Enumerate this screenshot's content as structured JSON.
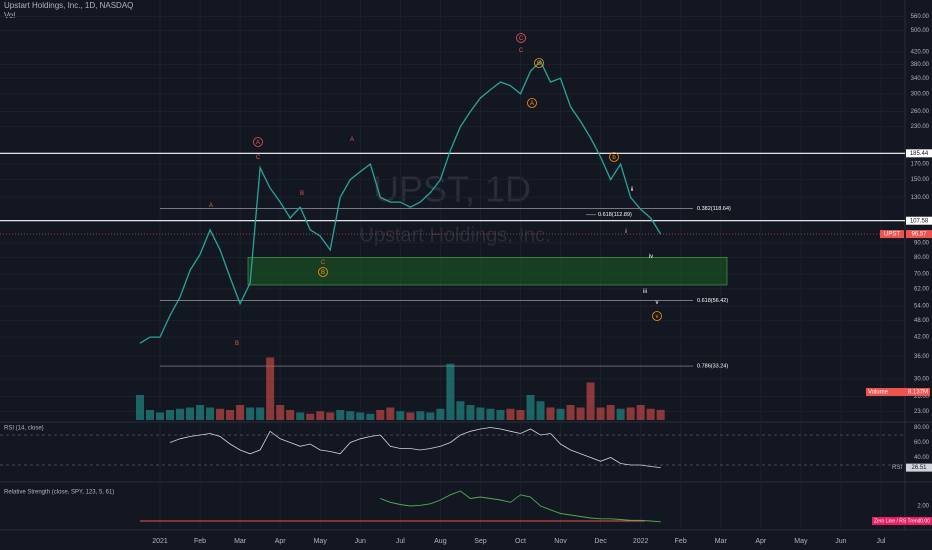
{
  "header": {
    "title": "Upstart Holdings, Inc., 1D, NASDAQ",
    "volume_label": "Vol",
    "watermark_symbol": "UPST, 1D",
    "watermark_name": "Upstart Holdings, Inc."
  },
  "chart_data": {
    "type": "line",
    "log_scale": true,
    "grid": true,
    "x": [
      -0.5,
      -0.25,
      0,
      0.25,
      0.5,
      0.75,
      1,
      1.25,
      1.5,
      1.75,
      2,
      2.25,
      2.5,
      2.75,
      3,
      3.25,
      3.5,
      3.75,
      4,
      4.25,
      4.5,
      4.75,
      5,
      5.25,
      5.5,
      5.75,
      6,
      6.25,
      6.5,
      6.75,
      7,
      7.25,
      7.5,
      7.75,
      8,
      8.25,
      8.5,
      8.75,
      9,
      9.25,
      9.5,
      9.75,
      10,
      10.25,
      10.5,
      10.75,
      11,
      11.25,
      11.5,
      11.75,
      12,
      12.25,
      12.5
    ],
    "series": [
      {
        "name": "UPST",
        "color": "#26a69a",
        "values": [
          40,
          42,
          42,
          50,
          58,
          72,
          82,
          100,
          85,
          68,
          55,
          65,
          165,
          140,
          125,
          110,
          120,
          100,
          95,
          85,
          130,
          150,
          160,
          170,
          130,
          125,
          125,
          120,
          125,
          135,
          150,
          190,
          230,
          260,
          290,
          310,
          330,
          320,
          300,
          360,
          390,
          330,
          340,
          270,
          240,
          210,
          180,
          150,
          170,
          130,
          118,
          110,
          96.57
        ]
      }
    ],
    "last_label": "96.57",
    "xlim": [
      -0.6,
      18.6
    ],
    "xticks": [
      {
        "value": 0,
        "label": "2021"
      },
      {
        "value": 1,
        "label": "Feb"
      },
      {
        "value": 2,
        "label": "Mar"
      },
      {
        "value": 3,
        "label": "Apr"
      },
      {
        "value": 4,
        "label": "May"
      },
      {
        "value": 5,
        "label": "Jun"
      },
      {
        "value": 6,
        "label": "Jul"
      },
      {
        "value": 7,
        "label": "Aug"
      },
      {
        "value": 8,
        "label": "Sep"
      },
      {
        "value": 9,
        "label": "Oct"
      },
      {
        "value": 10,
        "label": "Nov"
      },
      {
        "value": 11,
        "label": "Dec"
      },
      {
        "value": 12,
        "label": "2022"
      },
      {
        "value": 13,
        "label": "Feb"
      },
      {
        "value": 14,
        "label": "Mar"
      },
      {
        "value": 15,
        "label": "Apr"
      },
      {
        "value": 16,
        "label": "May"
      },
      {
        "value": 17,
        "label": "Jun"
      },
      {
        "value": 18,
        "label": "Jul"
      }
    ],
    "ylim": [
      21.5,
      640
    ],
    "yticks": [
      {
        "value": 560,
        "label": "560.00"
      },
      {
        "value": 500,
        "label": "500.00"
      },
      {
        "value": 420,
        "label": "420.00"
      },
      {
        "value": 380,
        "label": "380.00"
      },
      {
        "value": 340,
        "label": "340.00"
      },
      {
        "value": 300,
        "label": "300.00"
      },
      {
        "value": 260,
        "label": "260.00"
      },
      {
        "value": 230,
        "label": "230.00"
      },
      {
        "value": 170,
        "label": "170.00"
      },
      {
        "value": 150,
        "label": "150.00"
      },
      {
        "value": 130,
        "label": "130.00"
      },
      {
        "value": 90,
        "label": "90.00"
      },
      {
        "value": 80,
        "label": "80.00"
      },
      {
        "value": 70,
        "label": "70.00"
      },
      {
        "value": 62,
        "label": "62.00"
      },
      {
        "value": 54,
        "label": "54.00"
      },
      {
        "value": 48,
        "label": "48.00"
      },
      {
        "value": 42,
        "label": "42.00"
      },
      {
        "value": 36,
        "label": "36.00"
      },
      {
        "value": 30,
        "label": "30.00"
      },
      {
        "value": 26,
        "label": "26.00"
      },
      {
        "value": 23,
        "label": "23.00"
      }
    ],
    "levels": [
      {
        "value": 185.44,
        "label": "185.44",
        "color": "#ffffff"
      },
      {
        "value": 107.58,
        "label": "107.58",
        "color": "#ffffff"
      }
    ],
    "fib_levels": [
      {
        "value": 118.64,
        "label": "0.382(118.64)"
      },
      {
        "value": 112.89,
        "label": "0.618(112.89)"
      },
      {
        "value": 56.42,
        "label": "0.618(56.42)"
      },
      {
        "value": 33.24,
        "label": "0.786(33.24)"
      }
    ],
    "zone": {
      "values": [
        80,
        64
      ],
      "color": "#1b5e20"
    },
    "annotations": [
      "C",
      "C",
      "B",
      "A",
      "A",
      "C",
      "A",
      "B",
      "A",
      "B",
      "C",
      "B",
      "b",
      "ii",
      "i",
      "iv",
      "iii",
      "v",
      "v"
    ],
    "volume": {
      "name": "Volume",
      "value_label": "8.137M",
      "ylim": [
        0,
        60
      ],
      "values": [
        20,
        8,
        6,
        8,
        9,
        10,
        12,
        10,
        9,
        8,
        12,
        10,
        10,
        50,
        12,
        8,
        6,
        5,
        7,
        6,
        8,
        7,
        6,
        5,
        8,
        10,
        7,
        6,
        7,
        6,
        9,
        45,
        15,
        12,
        10,
        9,
        8,
        9,
        8,
        20,
        15,
        10,
        9,
        12,
        10,
        30,
        10,
        12,
        9,
        10,
        12,
        9,
        8.137
      ]
    },
    "rsi": {
      "title": "RSI (14, close)",
      "name": "RSI",
      "value_label": "26.51",
      "ylim": [
        10,
        86
      ],
      "yticks": [
        {
          "value": 80,
          "label": "80.00"
        },
        {
          "value": 60,
          "label": "60.00"
        },
        {
          "value": 40,
          "label": "40.00"
        }
      ],
      "bands": [
        70,
        30
      ],
      "values": [
        null,
        null,
        null,
        60,
        65,
        68,
        70,
        72,
        68,
        58,
        50,
        45,
        50,
        75,
        65,
        60,
        55,
        58,
        50,
        48,
        45,
        60,
        65,
        68,
        70,
        55,
        52,
        52,
        50,
        52,
        55,
        60,
        70,
        75,
        78,
        80,
        78,
        75,
        72,
        78,
        70,
        72,
        58,
        50,
        45,
        40,
        35,
        40,
        32,
        30,
        30,
        28,
        26.51
      ]
    },
    "rs": {
      "title": "Relative Strength (close, SPY, 123, 5, 61)",
      "name": "Zero Line / RS Trend",
      "color": "#4caf50",
      "zero_label": "0.00",
      "ylim": [
        -1.2,
        4.8
      ],
      "yticks": [
        {
          "value": 2,
          "label": "2.00"
        }
      ],
      "values": [
        null,
        null,
        null,
        null,
        null,
        null,
        null,
        null,
        null,
        null,
        null,
        null,
        null,
        null,
        null,
        null,
        null,
        null,
        null,
        null,
        null,
        null,
        null,
        null,
        3.0,
        2.5,
        2.2,
        2.0,
        2.1,
        2.3,
        2.8,
        3.5,
        4.0,
        3.0,
        3.2,
        3.0,
        2.8,
        2.5,
        3.5,
        3.2,
        2.0,
        1.5,
        1.0,
        0.8,
        0.6,
        0.4,
        0.3,
        0.3,
        0.2,
        0.1,
        0.1,
        0.0,
        -0.1
      ]
    }
  }
}
